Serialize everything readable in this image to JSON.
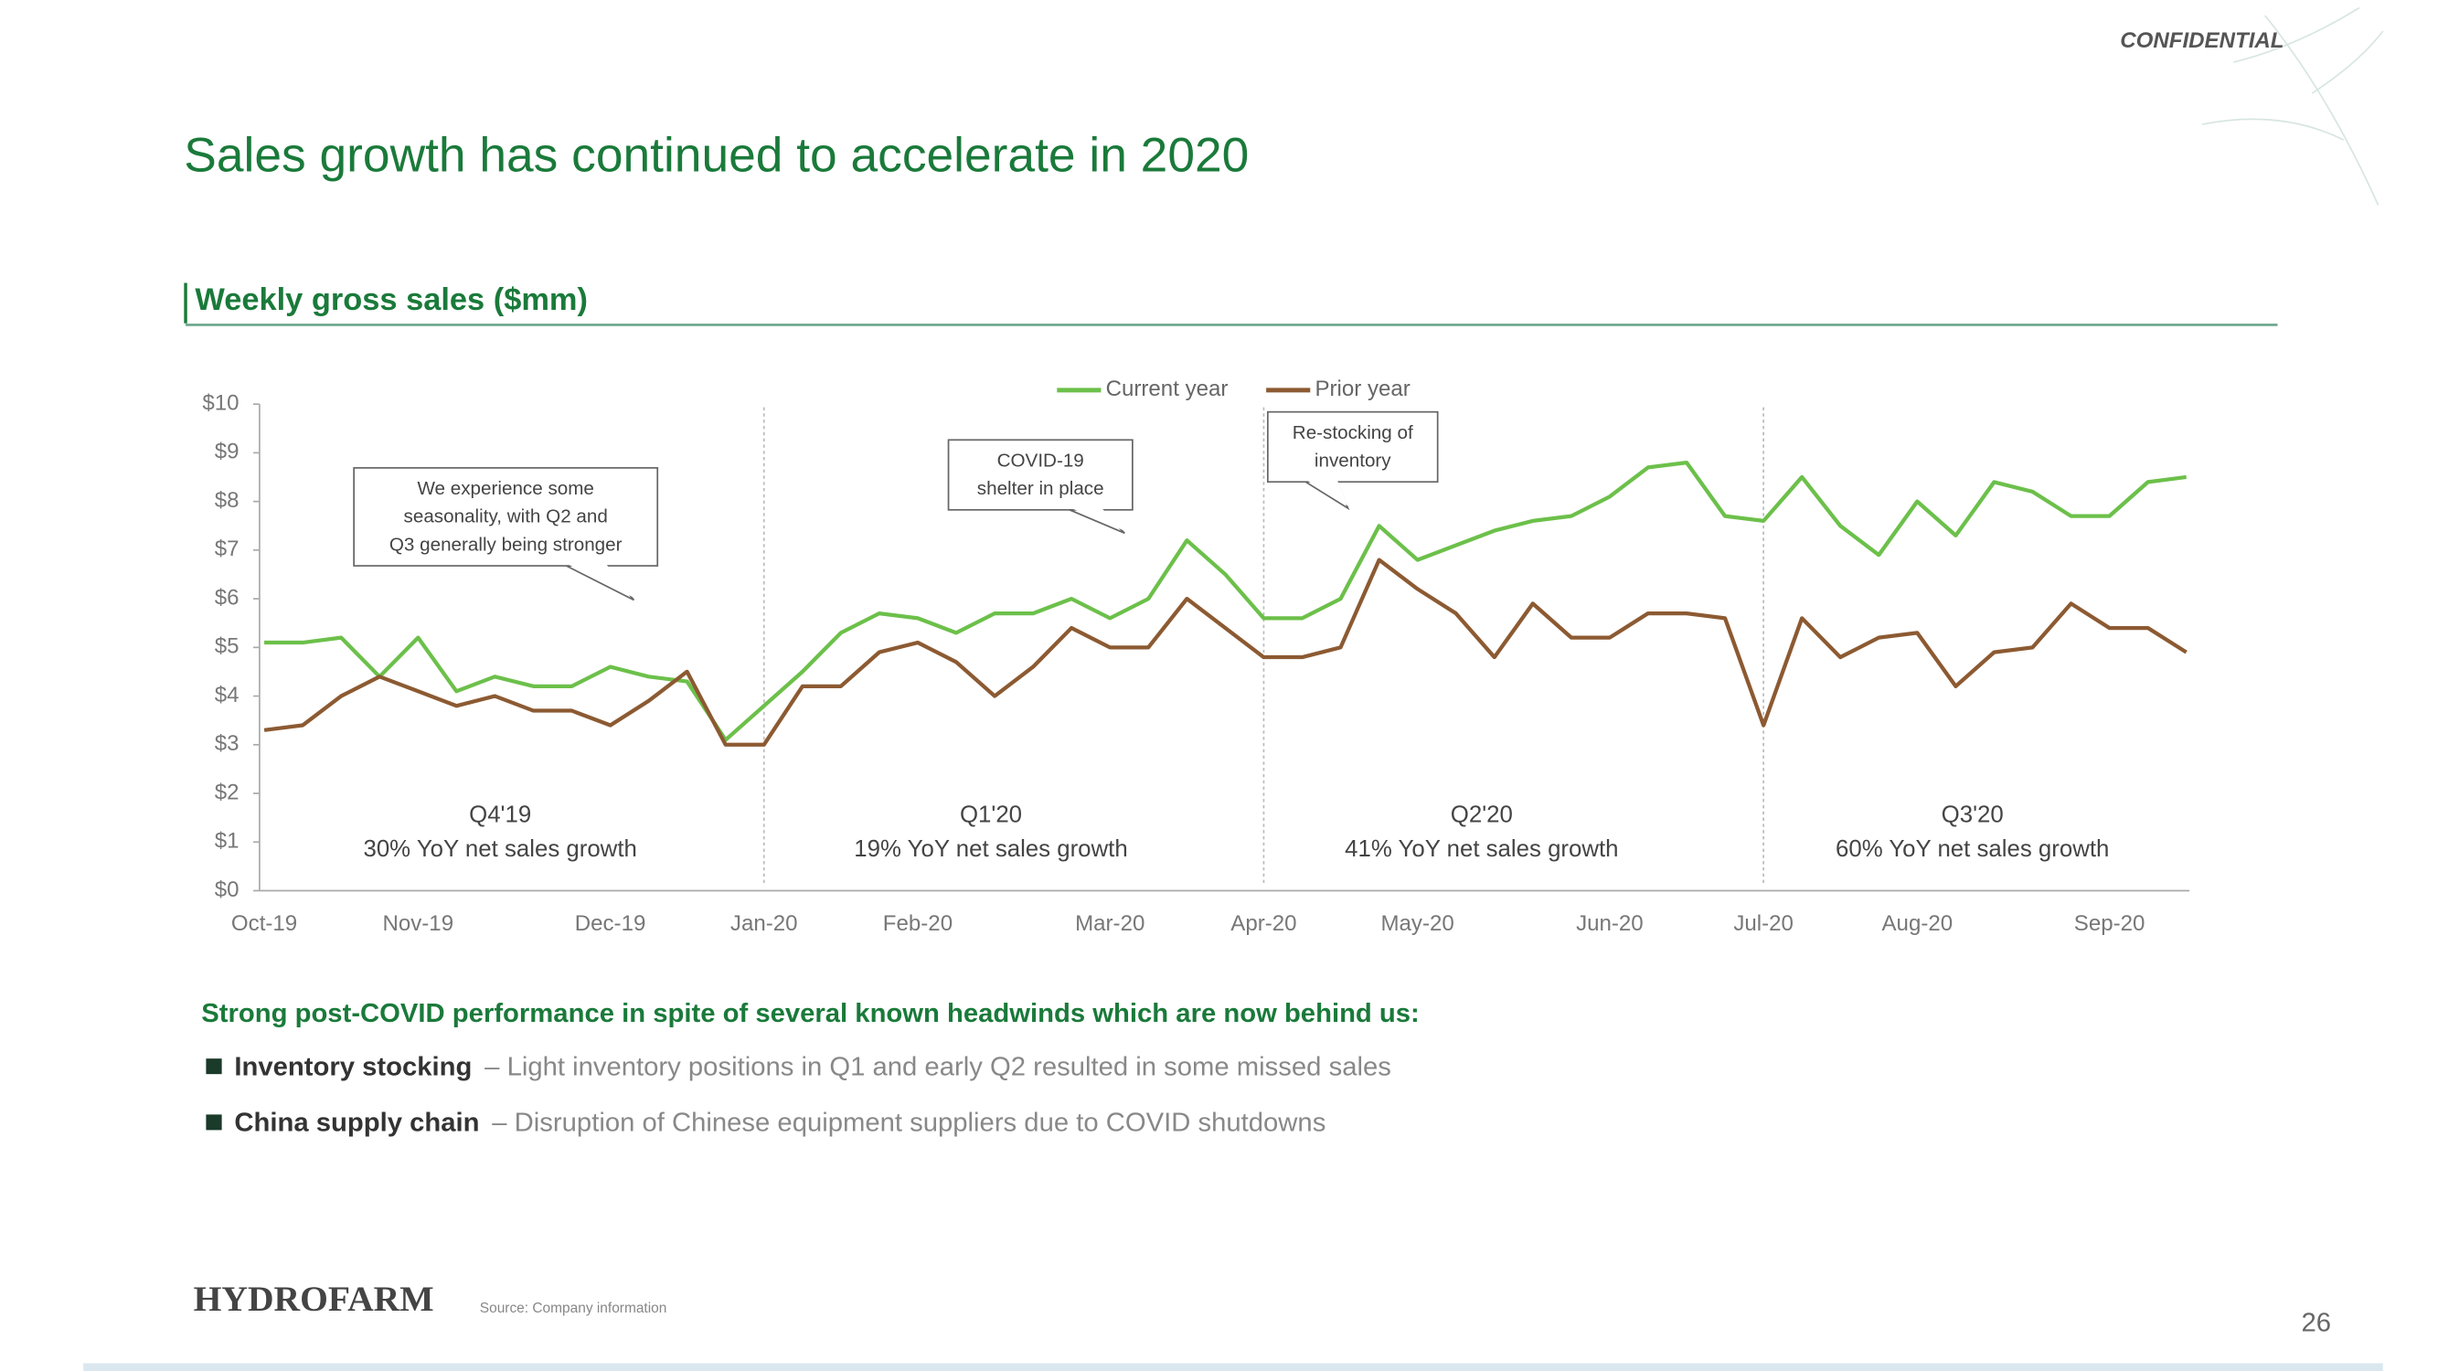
{
  "slide": {
    "title": "Sales growth has continued to accelerate in 2020",
    "confidential": "CONFIDENTIAL",
    "logo": "HYDROFARM",
    "source": "Source: Company information",
    "page_number": 26
  },
  "chart_data": {
    "type": "line",
    "title": "Weekly gross sales ($mm)",
    "categories": [
      "Oct-19",
      null,
      null,
      null,
      "Nov-19",
      null,
      null,
      null,
      null,
      "Dec-19",
      null,
      null,
      null,
      "Jan-20",
      null,
      null,
      null,
      "Feb-20",
      null,
      null,
      null,
      null,
      "Mar-20",
      null,
      null,
      null,
      "Apr-20",
      null,
      null,
      null,
      "May-20",
      null,
      null,
      null,
      null,
      "Jun-20",
      null,
      null,
      null,
      "Jul-20",
      null,
      null,
      null,
      "Aug-20",
      null,
      null,
      null,
      null,
      "Sep-20",
      null,
      null
    ],
    "series": [
      {
        "name": "Current year",
        "color": "#6cc04a",
        "values": [
          5.1,
          5.1,
          5.2,
          4.4,
          5.2,
          4.1,
          4.4,
          4.2,
          4.2,
          4.6,
          4.4,
          4.3,
          3.1,
          3.8,
          4.5,
          5.3,
          5.7,
          5.6,
          5.3,
          5.7,
          5.7,
          6.0,
          5.6,
          6.0,
          7.2,
          6.5,
          5.6,
          5.6,
          6.0,
          7.5,
          6.8,
          7.1,
          7.4,
          7.6,
          7.7,
          8.1,
          8.7,
          8.8,
          7.7,
          7.6,
          8.5,
          7.5,
          6.9,
          8.0,
          7.3,
          8.4,
          8.2,
          7.7,
          7.7,
          8.4,
          8.5
        ]
      },
      {
        "name": "Prior year",
        "color": "#8c5a32",
        "values": [
          3.3,
          3.4,
          4.0,
          4.4,
          4.1,
          3.8,
          4.0,
          3.7,
          3.7,
          3.4,
          3.9,
          4.5,
          3.0,
          3.0,
          4.2,
          4.2,
          4.9,
          5.1,
          4.7,
          4.0,
          4.6,
          5.4,
          5.0,
          5.0,
          6.0,
          5.4,
          4.8,
          4.8,
          5.0,
          6.8,
          6.2,
          5.7,
          4.8,
          5.9,
          5.2,
          5.2,
          5.7,
          5.7,
          5.6,
          3.4,
          5.6,
          4.8,
          5.2,
          5.3,
          4.2,
          4.9,
          5.0,
          5.9,
          5.4,
          5.4,
          4.9
        ]
      }
    ],
    "ylim": [
      0,
      10
    ],
    "yticks": [
      {
        "value": 0,
        "label": "$0"
      },
      {
        "value": 1,
        "label": "$1"
      },
      {
        "value": 2,
        "label": "$2"
      },
      {
        "value": 3,
        "label": "$3"
      },
      {
        "value": 4,
        "label": "$4"
      },
      {
        "value": 5,
        "label": "$5"
      },
      {
        "value": 6,
        "label": "$6"
      },
      {
        "value": 7,
        "label": "$7"
      },
      {
        "value": 8,
        "label": "$8"
      },
      {
        "value": 9,
        "label": "$9"
      },
      {
        "value": 10,
        "label": "$10"
      }
    ],
    "annotations": [
      {
        "lines": [
          "We experience some",
          "seasonality, with Q2 and",
          "Q3 generally being stronger"
        ]
      },
      {
        "lines": [
          "COVID-19",
          "shelter in place"
        ]
      },
      {
        "lines": [
          "Re-stocking of",
          "inventory"
        ]
      }
    ],
    "periods": [
      {
        "label": "Q4'19",
        "text": "30% YoY net sales growth"
      },
      {
        "label": "Q1'20",
        "text": "19% YoY net sales growth"
      },
      {
        "label": "Q2'20",
        "text": "41% YoY net sales growth"
      },
      {
        "label": "Q3'20",
        "text": "60% YoY net sales growth"
      }
    ]
  },
  "notes": {
    "heading": "Strong post-COVID performance in spite of several known headwinds which are now behind us:",
    "bullets": [
      {
        "term": "Inventory stocking",
        "text": "– Light inventory positions in Q1 and early Q2 resulted in some missed sales"
      },
      {
        "term": "China supply chain",
        "text": "– Disruption of Chinese equipment suppliers due to COVID shutdowns"
      }
    ]
  }
}
